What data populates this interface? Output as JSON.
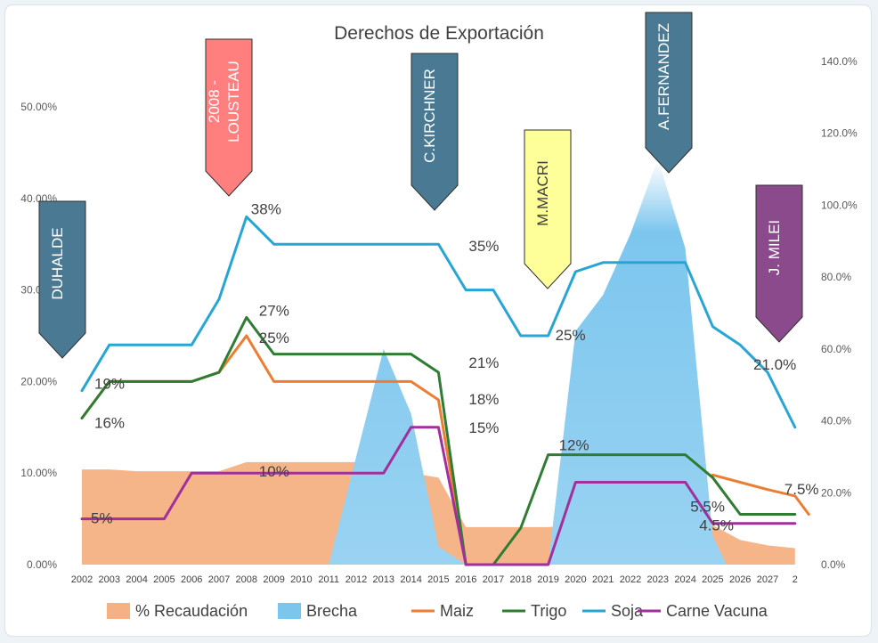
{
  "chart_data": {
    "type": "line",
    "title": "Derechos de Exportación",
    "categories": [
      "2002",
      "2003",
      "2004",
      "2005",
      "2006",
      "2007",
      "2008",
      "2009",
      "2010",
      "2011",
      "2012",
      "2013",
      "2014",
      "2015",
      "2016",
      "2017",
      "2018",
      "2019",
      "2020",
      "2021",
      "2022",
      "2023",
      "2024",
      "2025",
      "2026",
      "2027",
      "2"
    ],
    "y_left": {
      "range": [
        0,
        50
      ],
      "ticks": [
        "0.00%",
        "10.00%",
        "20.00%",
        "30.00%",
        "40.00%",
        "50.00%"
      ]
    },
    "y_right": {
      "range": [
        0,
        150
      ],
      "ticks": [
        "0.0%",
        "20.0%",
        "40.0%",
        "60.0%",
        "80.0%",
        "100.0%",
        "120.0%",
        "140.0%"
      ]
    },
    "grid": false,
    "legend_position": "bottom",
    "series": [
      {
        "name": "% Recaudación",
        "kind": "area",
        "axis": "left",
        "color": "#f4b183",
        "points": [
          [
            0,
            10.4
          ],
          [
            1,
            10.4
          ],
          [
            2,
            10.2
          ],
          [
            3,
            10.2
          ],
          [
            4,
            10.2
          ],
          [
            5,
            10.2
          ],
          [
            6,
            11.2
          ],
          [
            7,
            11.2
          ],
          [
            8,
            11.2
          ],
          [
            9,
            11.2
          ],
          [
            10,
            11.2
          ],
          [
            11,
            10.6
          ],
          [
            12,
            10.0
          ],
          [
            13,
            9.5
          ],
          [
            14,
            4.1
          ],
          [
            15,
            4.1
          ],
          [
            16,
            4.1
          ],
          [
            17,
            4.1
          ],
          [
            18,
            4.3
          ],
          [
            19,
            4.3
          ],
          [
            20,
            4.3
          ],
          [
            21,
            4.3
          ],
          [
            22,
            4.3
          ],
          [
            23,
            4.3
          ],
          [
            24,
            2.7
          ],
          [
            25,
            2.1
          ],
          [
            26,
            1.8
          ]
        ]
      },
      {
        "name": "Brecha",
        "kind": "area",
        "axis": "right",
        "color": "#5bb5e6",
        "points": [
          [
            9,
            0
          ],
          [
            10,
            30
          ],
          [
            11,
            60
          ],
          [
            12,
            42
          ],
          [
            13,
            5
          ],
          [
            14,
            0
          ],
          [
            17,
            0
          ],
          [
            18,
            65
          ],
          [
            19,
            75
          ],
          [
            20,
            92
          ],
          [
            21,
            113
          ],
          [
            22,
            88
          ],
          [
            23,
            8
          ],
          [
            23.5,
            0
          ]
        ]
      },
      {
        "name": "Maiz",
        "kind": "line",
        "axis": "left",
        "color": "#ed7d31",
        "values": [
          16,
          20,
          20,
          20,
          20,
          21,
          25,
          20,
          20,
          20,
          20,
          20,
          20,
          18,
          0,
          0,
          null,
          null,
          null,
          null,
          null,
          null,
          null,
          null,
          null,
          null,
          null
        ],
        "tail": [
          [
            23,
            9.8
          ],
          [
            24,
            9.0
          ],
          [
            25,
            8.2
          ],
          [
            26,
            7.5
          ],
          [
            26.5,
            5.5
          ]
        ]
      },
      {
        "name": "Trigo",
        "kind": "line",
        "axis": "left",
        "color": "#2e7d32",
        "values": [
          16,
          20,
          20,
          20,
          20,
          21,
          27,
          23,
          23,
          23,
          23,
          23,
          23,
          21,
          0,
          0,
          4,
          12,
          12,
          12,
          12,
          12,
          12,
          9.5,
          5.5,
          5.5,
          5.5
        ]
      },
      {
        "name": "Soja",
        "kind": "line",
        "axis": "left",
        "color": "#27a6d6",
        "values": [
          19,
          24,
          24,
          24,
          24,
          29,
          38,
          35,
          35,
          35,
          35,
          35,
          35,
          35,
          30,
          30,
          25,
          25,
          32,
          33,
          33,
          33,
          33,
          26,
          24,
          21,
          15
        ]
      },
      {
        "name": "Carne Vacuna",
        "kind": "line",
        "axis": "left",
        "color": "#a0309b",
        "values": [
          5,
          5,
          5,
          5,
          10,
          10,
          10,
          10,
          10,
          10,
          10,
          10,
          15,
          15,
          0,
          0,
          0,
          0,
          9,
          9,
          9,
          9,
          9,
          4.5,
          4.5,
          4.5,
          4.5
        ]
      }
    ],
    "data_labels": [
      {
        "text": "38%",
        "x": 6,
        "y": 38
      },
      {
        "text": "35%",
        "x": 13,
        "y": 35
      },
      {
        "text": "27%",
        "x": 6,
        "y": 27
      },
      {
        "text": "25%",
        "x": 6,
        "y": 25
      },
      {
        "text": "21%",
        "x": 13,
        "y": 21
      },
      {
        "text": "18%",
        "x": 13,
        "y": 18
      },
      {
        "text": "15%",
        "x": 13,
        "y": 15
      },
      {
        "text": "19%",
        "x": 0,
        "y": 19
      },
      {
        "text": "16%",
        "x": 0,
        "y": 16
      },
      {
        "text": "10%",
        "x": 6,
        "y": 10
      },
      {
        "text": "5%",
        "x": 0,
        "y": 5
      },
      {
        "text": "25%",
        "x": 17,
        "y": 25
      },
      {
        "text": "12%",
        "x": 17,
        "y": 12
      },
      {
        "text": "21.0%",
        "x": 25,
        "y": 21
      },
      {
        "text": "7.5%",
        "x": 26,
        "y": 7.5
      },
      {
        "text": "5.5%",
        "x": 24,
        "y": 5.5
      },
      {
        "text": "4.5%",
        "x": 24,
        "y": 4.5
      }
    ],
    "annotations": [
      {
        "text": "DUHALDE",
        "color": "#4a7a93",
        "text_color": "#ffffff"
      },
      {
        "text": "2008 - LOUSTEAU",
        "color": "#ff7f7f",
        "text_color": "#ffffff"
      },
      {
        "text": "C.KIRCHNER",
        "color": "#4a7a93",
        "text_color": "#ffffff"
      },
      {
        "text": "M.MACRI",
        "color": "#ffff99",
        "text_color": "#404040"
      },
      {
        "text": "A.FERNANDEZ",
        "color": "#4a7a93",
        "text_color": "#ffffff"
      },
      {
        "text": "J. MILEI",
        "color": "#8b4a8b",
        "text_color": "#ffffff"
      }
    ]
  }
}
